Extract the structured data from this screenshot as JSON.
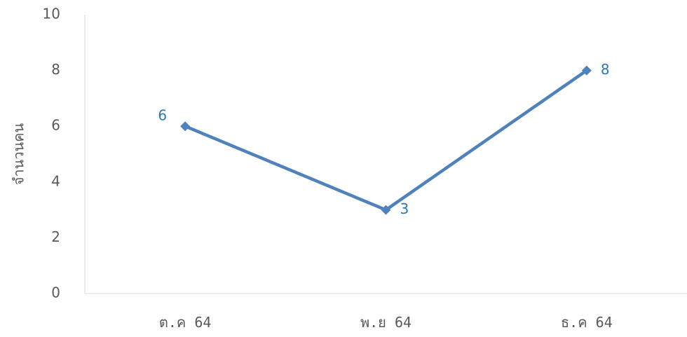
{
  "chart_data": {
    "type": "line",
    "categories": [
      "ต.ค 64",
      "พ.ย 64",
      "ธ.ค 64"
    ],
    "series": [
      {
        "values": [
          6,
          3,
          8
        ]
      }
    ],
    "title": "",
    "xlabel": "",
    "ylabel": "จำนวนคน",
    "ylim": [
      0,
      10
    ],
    "yticks": [
      0,
      2,
      4,
      6,
      8,
      10
    ],
    "data_labels": [
      "6",
      "3",
      "8"
    ],
    "data_label_positions": [
      "left",
      "right",
      "right"
    ],
    "grid": false,
    "legend": "none",
    "colors": {
      "line": "#4F81BD",
      "label": "#2E75B6",
      "axis": "#D9D9D9",
      "text": "#595959"
    }
  }
}
